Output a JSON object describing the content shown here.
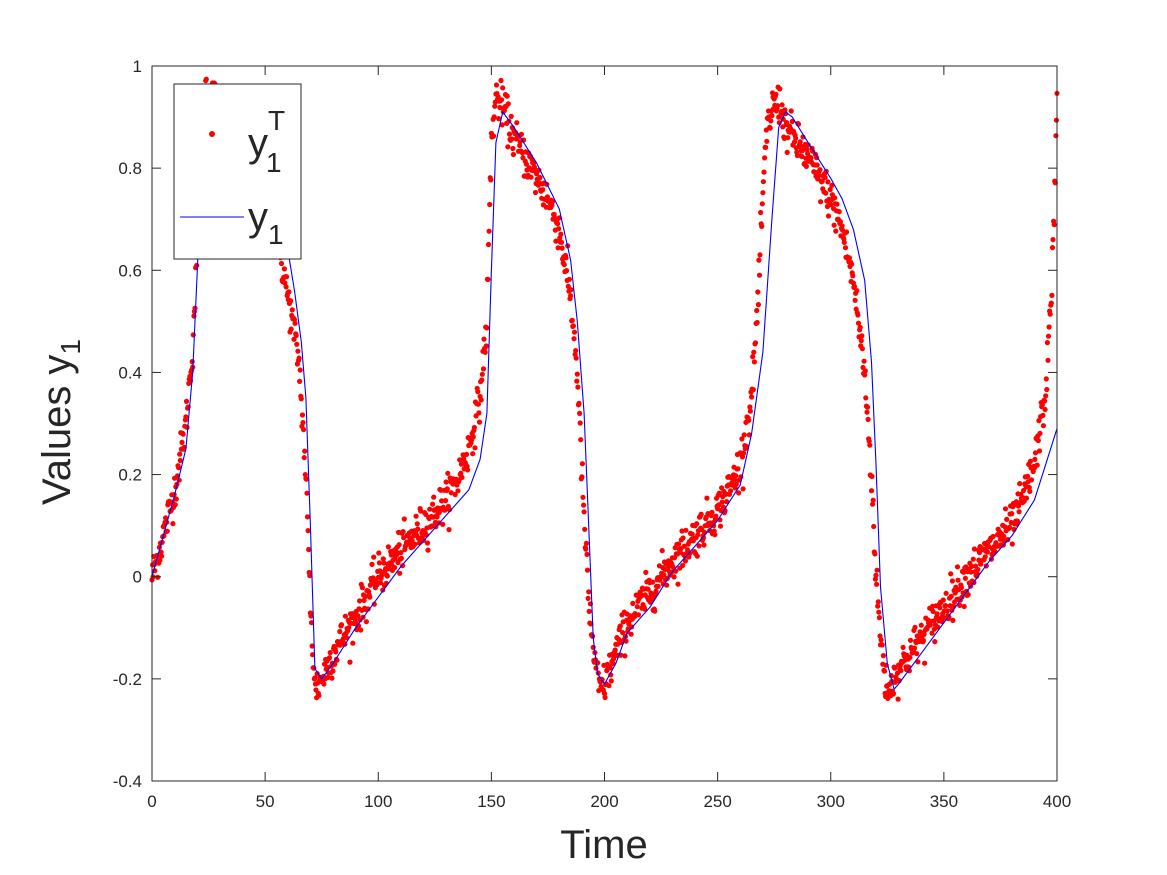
{
  "chart_data": {
    "type": "scatter",
    "title": "",
    "xlabel": "Time",
    "ylabel": {
      "base": "Values y",
      "subscript": "1"
    },
    "xlim": [
      0,
      400
    ],
    "ylim": [
      -0.4,
      1
    ],
    "xticks": [
      0,
      50,
      100,
      150,
      200,
      250,
      300,
      350,
      400
    ],
    "yticks": [
      -0.4,
      -0.2,
      0,
      0.2,
      0.4,
      0.6,
      0.8,
      1
    ],
    "xtick_labels": [
      "0",
      "50",
      "100",
      "150",
      "200",
      "250",
      "300",
      "350",
      "400"
    ],
    "ytick_labels": [
      "-0.4",
      "-0.2",
      "0",
      "0.2",
      "0.4",
      "0.6",
      "0.8",
      "1"
    ],
    "grid": false,
    "legend_position": "top-left",
    "series": [
      {
        "name": {
          "base": "y",
          "subscript": "1",
          "superscript": "T"
        },
        "style": "points",
        "color": "#ff0000",
        "jitter": 0.02,
        "sampling_step": 0.25,
        "x": [
          0,
          5,
          10,
          15,
          18,
          20,
          22,
          24,
          30,
          40,
          50,
          55,
          58,
          62,
          65,
          68,
          70,
          72,
          75,
          80,
          90,
          100,
          110,
          120,
          130,
          135,
          140,
          145,
          148,
          150,
          152,
          155,
          160,
          170,
          175,
          180,
          185,
          188,
          190,
          193,
          196,
          198,
          200,
          205,
          210,
          220,
          230,
          240,
          250,
          255,
          260,
          265,
          268,
          270,
          272,
          275,
          278,
          280,
          290,
          300,
          305,
          310,
          315,
          318,
          320,
          322,
          324,
          326,
          330,
          340,
          350,
          360,
          370,
          380,
          385,
          390,
          395,
          398,
          400
        ],
        "y": [
          0,
          0.08,
          0.17,
          0.3,
          0.45,
          0.65,
          0.88,
          0.96,
          0.92,
          0.85,
          0.74,
          0.67,
          0.6,
          0.5,
          0.42,
          0.2,
          -0.05,
          -0.22,
          -0.2,
          -0.15,
          -0.08,
          0.0,
          0.05,
          0.1,
          0.15,
          0.19,
          0.25,
          0.35,
          0.5,
          0.85,
          0.94,
          0.92,
          0.86,
          0.78,
          0.74,
          0.68,
          0.55,
          0.4,
          0.2,
          -0.05,
          -0.18,
          -0.22,
          -0.21,
          -0.15,
          -0.09,
          -0.03,
          0.03,
          0.08,
          0.13,
          0.17,
          0.22,
          0.35,
          0.55,
          0.75,
          0.88,
          0.93,
          0.92,
          0.88,
          0.82,
          0.74,
          0.68,
          0.58,
          0.4,
          0.2,
          0.0,
          -0.12,
          -0.2,
          -0.22,
          -0.18,
          -0.12,
          -0.06,
          0.0,
          0.05,
          0.1,
          0.15,
          0.22,
          0.36,
          0.6,
          0.92
        ]
      },
      {
        "name": {
          "base": "y",
          "subscript": "1"
        },
        "style": "line",
        "color": "#0000ff",
        "x": [
          0,
          5,
          10,
          15,
          18,
          20,
          22,
          25,
          30,
          40,
          50,
          55,
          60,
          63,
          66,
          68,
          70,
          72,
          75,
          80,
          90,
          100,
          110,
          120,
          130,
          140,
          145,
          148,
          150,
          152,
          155,
          160,
          170,
          180,
          185,
          188,
          191,
          193,
          195,
          197,
          200,
          205,
          210,
          220,
          230,
          240,
          250,
          260,
          265,
          270,
          274,
          277,
          280,
          283,
          290,
          300,
          305,
          310,
          315,
          318,
          320,
          322,
          325,
          328,
          330,
          340,
          350,
          360,
          370,
          380,
          390,
          395,
          400
        ],
        "y": [
          0,
          0.08,
          0.16,
          0.25,
          0.4,
          0.6,
          0.82,
          0.92,
          0.9,
          0.83,
          0.74,
          0.7,
          0.64,
          0.56,
          0.46,
          0.35,
          0.1,
          -0.18,
          -0.2,
          -0.17,
          -0.1,
          -0.04,
          0.02,
          0.07,
          0.12,
          0.17,
          0.23,
          0.32,
          0.6,
          0.85,
          0.91,
          0.88,
          0.81,
          0.72,
          0.62,
          0.5,
          0.32,
          0.1,
          -0.12,
          -0.19,
          -0.21,
          -0.17,
          -0.11,
          -0.06,
          0.01,
          0.06,
          0.11,
          0.18,
          0.28,
          0.44,
          0.7,
          0.88,
          0.91,
          0.9,
          0.85,
          0.78,
          0.74,
          0.68,
          0.58,
          0.42,
          0.22,
          -0.02,
          -0.17,
          -0.22,
          -0.21,
          -0.15,
          -0.09,
          -0.03,
          0.03,
          0.08,
          0.15,
          0.22,
          0.29
        ]
      }
    ]
  }
}
